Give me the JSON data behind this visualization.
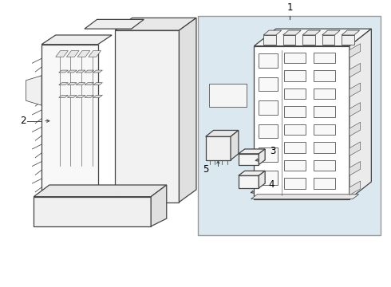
{
  "background_color": "#ffffff",
  "line_color": "#444444",
  "label_color": "#000000",
  "fig_width": 4.9,
  "fig_height": 3.6,
  "dpi": 100,
  "box_fill": "#dde8f0",
  "box_edge": "#888888",
  "label_font_size": 8.5
}
